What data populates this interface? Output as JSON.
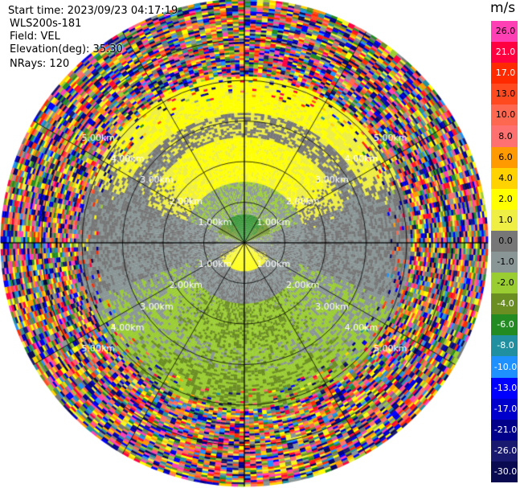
{
  "header": {
    "start_time": "Start time: 2023/09/23 04:17:19",
    "instrument": "WLS200s-181",
    "field": "Field: VEL",
    "elevation": "Elevation(deg): 35.30",
    "nrays": "NRays: 120"
  },
  "colorbar": {
    "unit": "m/s",
    "levels": [
      {
        "label": "26.0",
        "color": "#ff3fb4"
      },
      {
        "label": "21.0",
        "color": "#ff0040"
      },
      {
        "label": "17.0",
        "color": "#ff2a00"
      },
      {
        "label": "13.0",
        "color": "#ff4a20"
      },
      {
        "label": "10.0",
        "color": "#ff6850"
      },
      {
        "label": "8.0",
        "color": "#ff7070"
      },
      {
        "label": "6.0",
        "color": "#ff9a00"
      },
      {
        "label": "4.0",
        "color": "#ffd200"
      },
      {
        "label": "2.0",
        "color": "#ffff00"
      },
      {
        "label": "1.0",
        "color": "#eeee44"
      },
      {
        "label": "0.0",
        "color": "#777777"
      },
      {
        "label": "-1.0",
        "color": "#8a9696"
      },
      {
        "label": "-2.0",
        "color": "#9acd32"
      },
      {
        "label": "-4.0",
        "color": "#6b8e23"
      },
      {
        "label": "-6.0",
        "color": "#228b22"
      },
      {
        "label": "-8.0",
        "color": "#2090a0"
      },
      {
        "label": "-10.0",
        "color": "#1e90ff"
      },
      {
        "label": "-13.0",
        "color": "#0000ff"
      },
      {
        "label": "-17.0",
        "color": "#0000cd"
      },
      {
        "label": "-21.0",
        "color": "#00008b"
      },
      {
        "label": "-26.0",
        "color": "#191970"
      },
      {
        "label": "-30.0",
        "color": "#0a0a50"
      }
    ]
  },
  "chart_data": {
    "type": "heatmap",
    "projection": "polar (PPI)",
    "field": "VEL",
    "units": "m/s",
    "elevation_deg": 35.3,
    "nrays": 120,
    "max_range_km": 6.0,
    "range_ring_labels": [
      "1.00km",
      "2.00km",
      "3.00km",
      "4.00km",
      "5.00km"
    ],
    "range_rings_km": [
      1.0,
      2.0,
      3.0,
      4.0,
      5.0
    ],
    "spoke_step_deg": 30,
    "color_scale_ms": [
      26.0,
      21.0,
      17.0,
      13.0,
      10.0,
      8.0,
      6.0,
      4.0,
      2.0,
      1.0,
      0.0,
      -1.0,
      -2.0,
      -4.0,
      -6.0,
      -8.0,
      -10.0,
      -13.0,
      -17.0,
      -21.0,
      -26.0,
      -30.0
    ],
    "velocity_profile": [
      {
        "range_km": [
          0.0,
          0.7
        ],
        "north_ms": -5.0,
        "south_ms": 3.0
      },
      {
        "range_km": [
          0.7,
          1.5
        ],
        "north_ms": -1.0,
        "south_ms": 0.0
      },
      {
        "range_km": [
          1.5,
          2.6
        ],
        "north_ms": 2.5,
        "south_ms": -2.0
      },
      {
        "range_km": [
          2.6,
          3.2
        ],
        "north_ms": 1.0,
        "south_ms": -1.5
      },
      {
        "range_km": [
          3.2,
          4.1
        ],
        "north_ms": 2.5,
        "south_ms": -2.0
      },
      {
        "range_km": [
          4.1,
          6.0
        ],
        "north_ms": "noise",
        "south_ms": "noise"
      }
    ]
  }
}
